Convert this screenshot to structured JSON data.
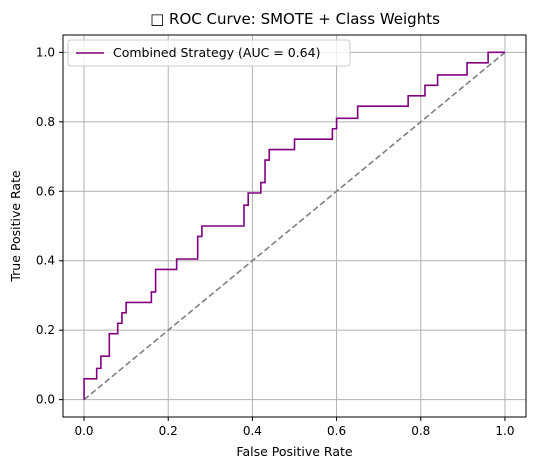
{
  "chart_data": {
    "type": "line",
    "title": "□ ROC Curve: SMOTE + Class Weights",
    "xlabel": "False Positive Rate",
    "ylabel": "True Positive Rate",
    "xlim": [
      -0.05,
      1.05
    ],
    "ylim": [
      -0.05,
      1.05
    ],
    "xticks": [
      0.0,
      0.2,
      0.4,
      0.6,
      0.8,
      1.0
    ],
    "yticks": [
      0.0,
      0.2,
      0.4,
      0.6,
      0.8,
      1.0
    ],
    "xtick_labels": [
      "0.0",
      "0.2",
      "0.4",
      "0.6",
      "0.8",
      "1.0"
    ],
    "ytick_labels": [
      "0.0",
      "0.2",
      "0.4",
      "0.6",
      "0.8",
      "1.0"
    ],
    "grid": true,
    "legend_position": "upper-left",
    "series": [
      {
        "name": "Combined Strategy (AUC = 0.64)",
        "color": "#800080",
        "style": "solid",
        "x": [
          0.0,
          0.0,
          0.0,
          0.03,
          0.03,
          0.04,
          0.04,
          0.06,
          0.06,
          0.08,
          0.08,
          0.09,
          0.09,
          0.1,
          0.1,
          0.16,
          0.16,
          0.17,
          0.17,
          0.22,
          0.22,
          0.27,
          0.27,
          0.28,
          0.28,
          0.38,
          0.38,
          0.39,
          0.39,
          0.42,
          0.42,
          0.43,
          0.43,
          0.44,
          0.44,
          0.5,
          0.5,
          0.59,
          0.59,
          0.6,
          0.6,
          0.65,
          0.65,
          0.77,
          0.77,
          0.81,
          0.81,
          0.84,
          0.84,
          0.91,
          0.91,
          0.96,
          0.96,
          1.0
        ],
        "y": [
          0.0,
          0.0,
          0.06,
          0.06,
          0.09,
          0.09,
          0.125,
          0.125,
          0.19,
          0.19,
          0.22,
          0.22,
          0.25,
          0.25,
          0.28,
          0.28,
          0.31,
          0.31,
          0.375,
          0.375,
          0.405,
          0.405,
          0.47,
          0.47,
          0.5,
          0.5,
          0.56,
          0.56,
          0.595,
          0.595,
          0.625,
          0.625,
          0.69,
          0.69,
          0.72,
          0.72,
          0.75,
          0.75,
          0.78,
          0.78,
          0.81,
          0.81,
          0.845,
          0.845,
          0.875,
          0.875,
          0.905,
          0.905,
          0.935,
          0.935,
          0.97,
          0.97,
          1.0,
          1.0
        ]
      },
      {
        "name": "",
        "color": "#808080",
        "style": "dashed",
        "x": [
          0.0,
          1.0
        ],
        "y": [
          0.0,
          1.0
        ]
      }
    ]
  }
}
